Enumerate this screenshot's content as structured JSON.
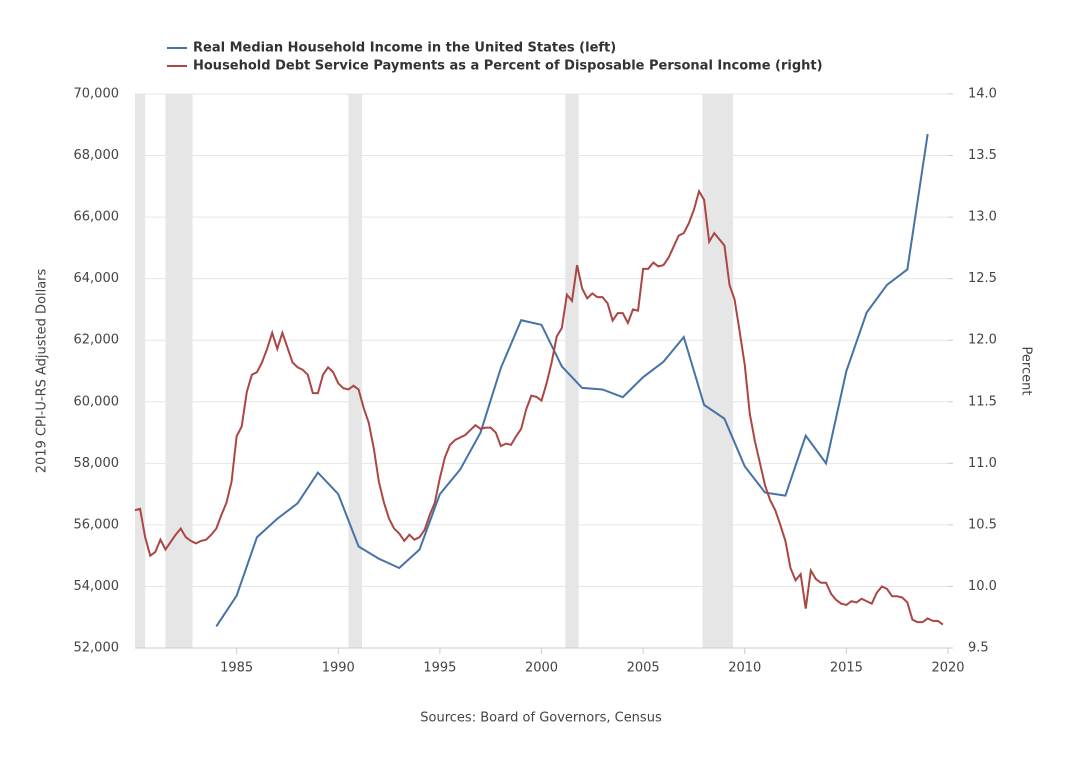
{
  "chart_data": {
    "type": "line",
    "source": "Sources: Board of Governors, Census",
    "ylabel": "2019 CPI-U-RS Adjusted Dollars",
    "y2label": "Percent",
    "xlim": [
      1980,
      2020
    ],
    "xticks": [
      1985,
      1990,
      1995,
      2000,
      2005,
      2010,
      2015,
      2020
    ],
    "ylim": [
      52000,
      70000
    ],
    "yticks": [
      {
        "value": 52000,
        "label": "52,000"
      },
      {
        "value": 54000,
        "label": "54,000"
      },
      {
        "value": 56000,
        "label": "56,000"
      },
      {
        "value": 58000,
        "label": "58,000"
      },
      {
        "value": 60000,
        "label": "60,000"
      },
      {
        "value": 62000,
        "label": "62,000"
      },
      {
        "value": 64000,
        "label": "64,000"
      },
      {
        "value": 66000,
        "label": "66,000"
      },
      {
        "value": 68000,
        "label": "68,000"
      },
      {
        "value": 70000,
        "label": "70,000"
      }
    ],
    "y2lim": [
      9.5,
      14.0
    ],
    "y2ticks": [
      9.5,
      {
        "value": 10,
        "label": "10.0"
      },
      10.5,
      {
        "value": 11,
        "label": "11.0"
      },
      11.5,
      {
        "value": 12,
        "label": "12.0"
      },
      12.5,
      {
        "value": 13,
        "label": "13.0"
      },
      13.5,
      {
        "value": 14,
        "label": "14.0"
      }
    ],
    "grid": true,
    "legend": "top",
    "recession_color": "#e6e6e6",
    "recessions": [
      [
        1980,
        1980.5
      ],
      [
        1981.5,
        1982.83
      ],
      [
        1990.5,
        1991.17
      ],
      [
        2001.17,
        2001.83
      ],
      [
        2007.92,
        2009.42
      ]
    ],
    "series": [
      {
        "name": "Real Median Household Income in the United States (left)",
        "color": "#4572a7",
        "axis": "y",
        "x": [
          1984,
          1985,
          1986,
          1987,
          1988,
          1989,
          1990,
          1991,
          1992,
          1993,
          1994,
          1995,
          1996,
          1997,
          1998,
          1999,
          2000,
          2001,
          2002,
          2003,
          2004,
          2005,
          2006,
          2007,
          2008,
          2009,
          2010,
          2011,
          2012,
          2013,
          2014,
          2015,
          2016,
          2017,
          2018,
          2019
        ],
        "values": [
          52700,
          53700,
          55600,
          56200,
          56700,
          57700,
          57000,
          55300,
          54900,
          54600,
          55200,
          57000,
          57800,
          59000,
          61100,
          62650,
          62500,
          61150,
          60450,
          60400,
          60150,
          60800,
          61300,
          62100,
          59900,
          59450,
          57900,
          57050,
          56950,
          58900,
          58000,
          61000,
          62900,
          63800,
          64300,
          68700
        ]
      },
      {
        "name": "Household Debt Service Payments as a Percent of Disposable Personal Income (right)",
        "color": "#aa4643",
        "axis": "y2",
        "x": [
          1980,
          1980.25,
          1980.5,
          1980.75,
          1981,
          1981.25,
          1981.5,
          1981.75,
          1982,
          1982.25,
          1982.5,
          1982.75,
          1983,
          1983.25,
          1983.5,
          1983.75,
          1984,
          1984.25,
          1984.5,
          1984.75,
          1985,
          1985.25,
          1985.5,
          1985.75,
          1986,
          1986.25,
          1986.5,
          1986.75,
          1987,
          1987.25,
          1987.5,
          1987.75,
          1988,
          1988.25,
          1988.5,
          1988.75,
          1989,
          1989.25,
          1989.5,
          1989.75,
          1990,
          1990.25,
          1990.5,
          1990.75,
          1991,
          1991.25,
          1991.5,
          1991.75,
          1992,
          1992.25,
          1992.5,
          1992.75,
          1993,
          1993.25,
          1993.5,
          1993.75,
          1994,
          1994.25,
          1994.5,
          1994.75,
          1995,
          1995.25,
          1995.5,
          1995.75,
          1996,
          1996.25,
          1996.5,
          1996.75,
          1997,
          1997.25,
          1997.5,
          1997.75,
          1998,
          1998.25,
          1998.5,
          1998.75,
          1999,
          1999.25,
          1999.5,
          1999.75,
          2000,
          2000.25,
          2000.5,
          2000.75,
          2001,
          2001.25,
          2001.5,
          2001.75,
          2002,
          2002.25,
          2002.5,
          2002.75,
          2003,
          2003.25,
          2003.5,
          2003.75,
          2004,
          2004.25,
          2004.5,
          2004.75,
          2005,
          2005.25,
          2005.5,
          2005.75,
          2006,
          2006.25,
          2006.5,
          2006.75,
          2007,
          2007.25,
          2007.5,
          2007.75,
          2008,
          2008.25,
          2008.5,
          2008.75,
          2009,
          2009.25,
          2009.5,
          2009.75,
          2010,
          2010.25,
          2010.5,
          2010.75,
          2011,
          2011.25,
          2011.5,
          2011.75,
          2012,
          2012.25,
          2012.5,
          2012.75,
          2013,
          2013.25,
          2013.5,
          2013.75,
          2014,
          2014.25,
          2014.5,
          2014.75,
          2015,
          2015.25,
          2015.5,
          2015.75,
          2016,
          2016.25,
          2016.5,
          2016.75,
          2017,
          2017.25,
          2017.5,
          2017.75,
          2018,
          2018.25,
          2018.5,
          2018.75,
          2019,
          2019.25,
          2019.5,
          2019.75
        ],
        "values": [
          10.62,
          10.63,
          10.4,
          10.25,
          10.28,
          10.38,
          10.3,
          10.36,
          10.42,
          10.47,
          10.4,
          10.37,
          10.35,
          10.37,
          10.38,
          10.42,
          10.47,
          10.58,
          10.68,
          10.85,
          11.22,
          11.3,
          11.58,
          11.72,
          11.74,
          11.82,
          11.93,
          12.06,
          11.93,
          12.06,
          11.94,
          11.82,
          11.78,
          11.76,
          11.72,
          11.57,
          11.57,
          11.72,
          11.78,
          11.74,
          11.65,
          11.61,
          11.6,
          11.63,
          11.6,
          11.45,
          11.33,
          11.12,
          10.85,
          10.68,
          10.55,
          10.47,
          10.43,
          10.37,
          10.42,
          10.38,
          10.4,
          10.46,
          10.58,
          10.68,
          10.88,
          11.05,
          11.15,
          11.19,
          11.21,
          11.23,
          11.27,
          11.31,
          11.28,
          11.29,
          11.29,
          11.25,
          11.14,
          11.16,
          11.15,
          11.22,
          11.28,
          11.44,
          11.55,
          11.54,
          11.51,
          11.65,
          11.82,
          12.03,
          12.1,
          12.37,
          12.32,
          12.61,
          12.42,
          12.34,
          12.38,
          12.35,
          12.35,
          12.3,
          12.16,
          12.22,
          12.22,
          12.14,
          12.25,
          12.24,
          12.58,
          12.58,
          12.63,
          12.6,
          12.61,
          12.67,
          12.76,
          12.85,
          12.87,
          12.95,
          13.06,
          13.21,
          13.14,
          12.8,
          12.87,
          12.82,
          12.77,
          12.45,
          12.33,
          12.07,
          11.8,
          11.4,
          11.18,
          11.0,
          10.82,
          10.7,
          10.62,
          10.5,
          10.37,
          10.15,
          10.05,
          10.1,
          9.82,
          10.13,
          10.06,
          10.03,
          10.03,
          9.94,
          9.89,
          9.86,
          9.85,
          9.88,
          9.87,
          9.9,
          9.88,
          9.86,
          9.95,
          10.0,
          9.98,
          9.92,
          9.92,
          9.91,
          9.87,
          9.73,
          9.71,
          9.71,
          9.74,
          9.72,
          9.72,
          9.69
        ]
      }
    ]
  }
}
